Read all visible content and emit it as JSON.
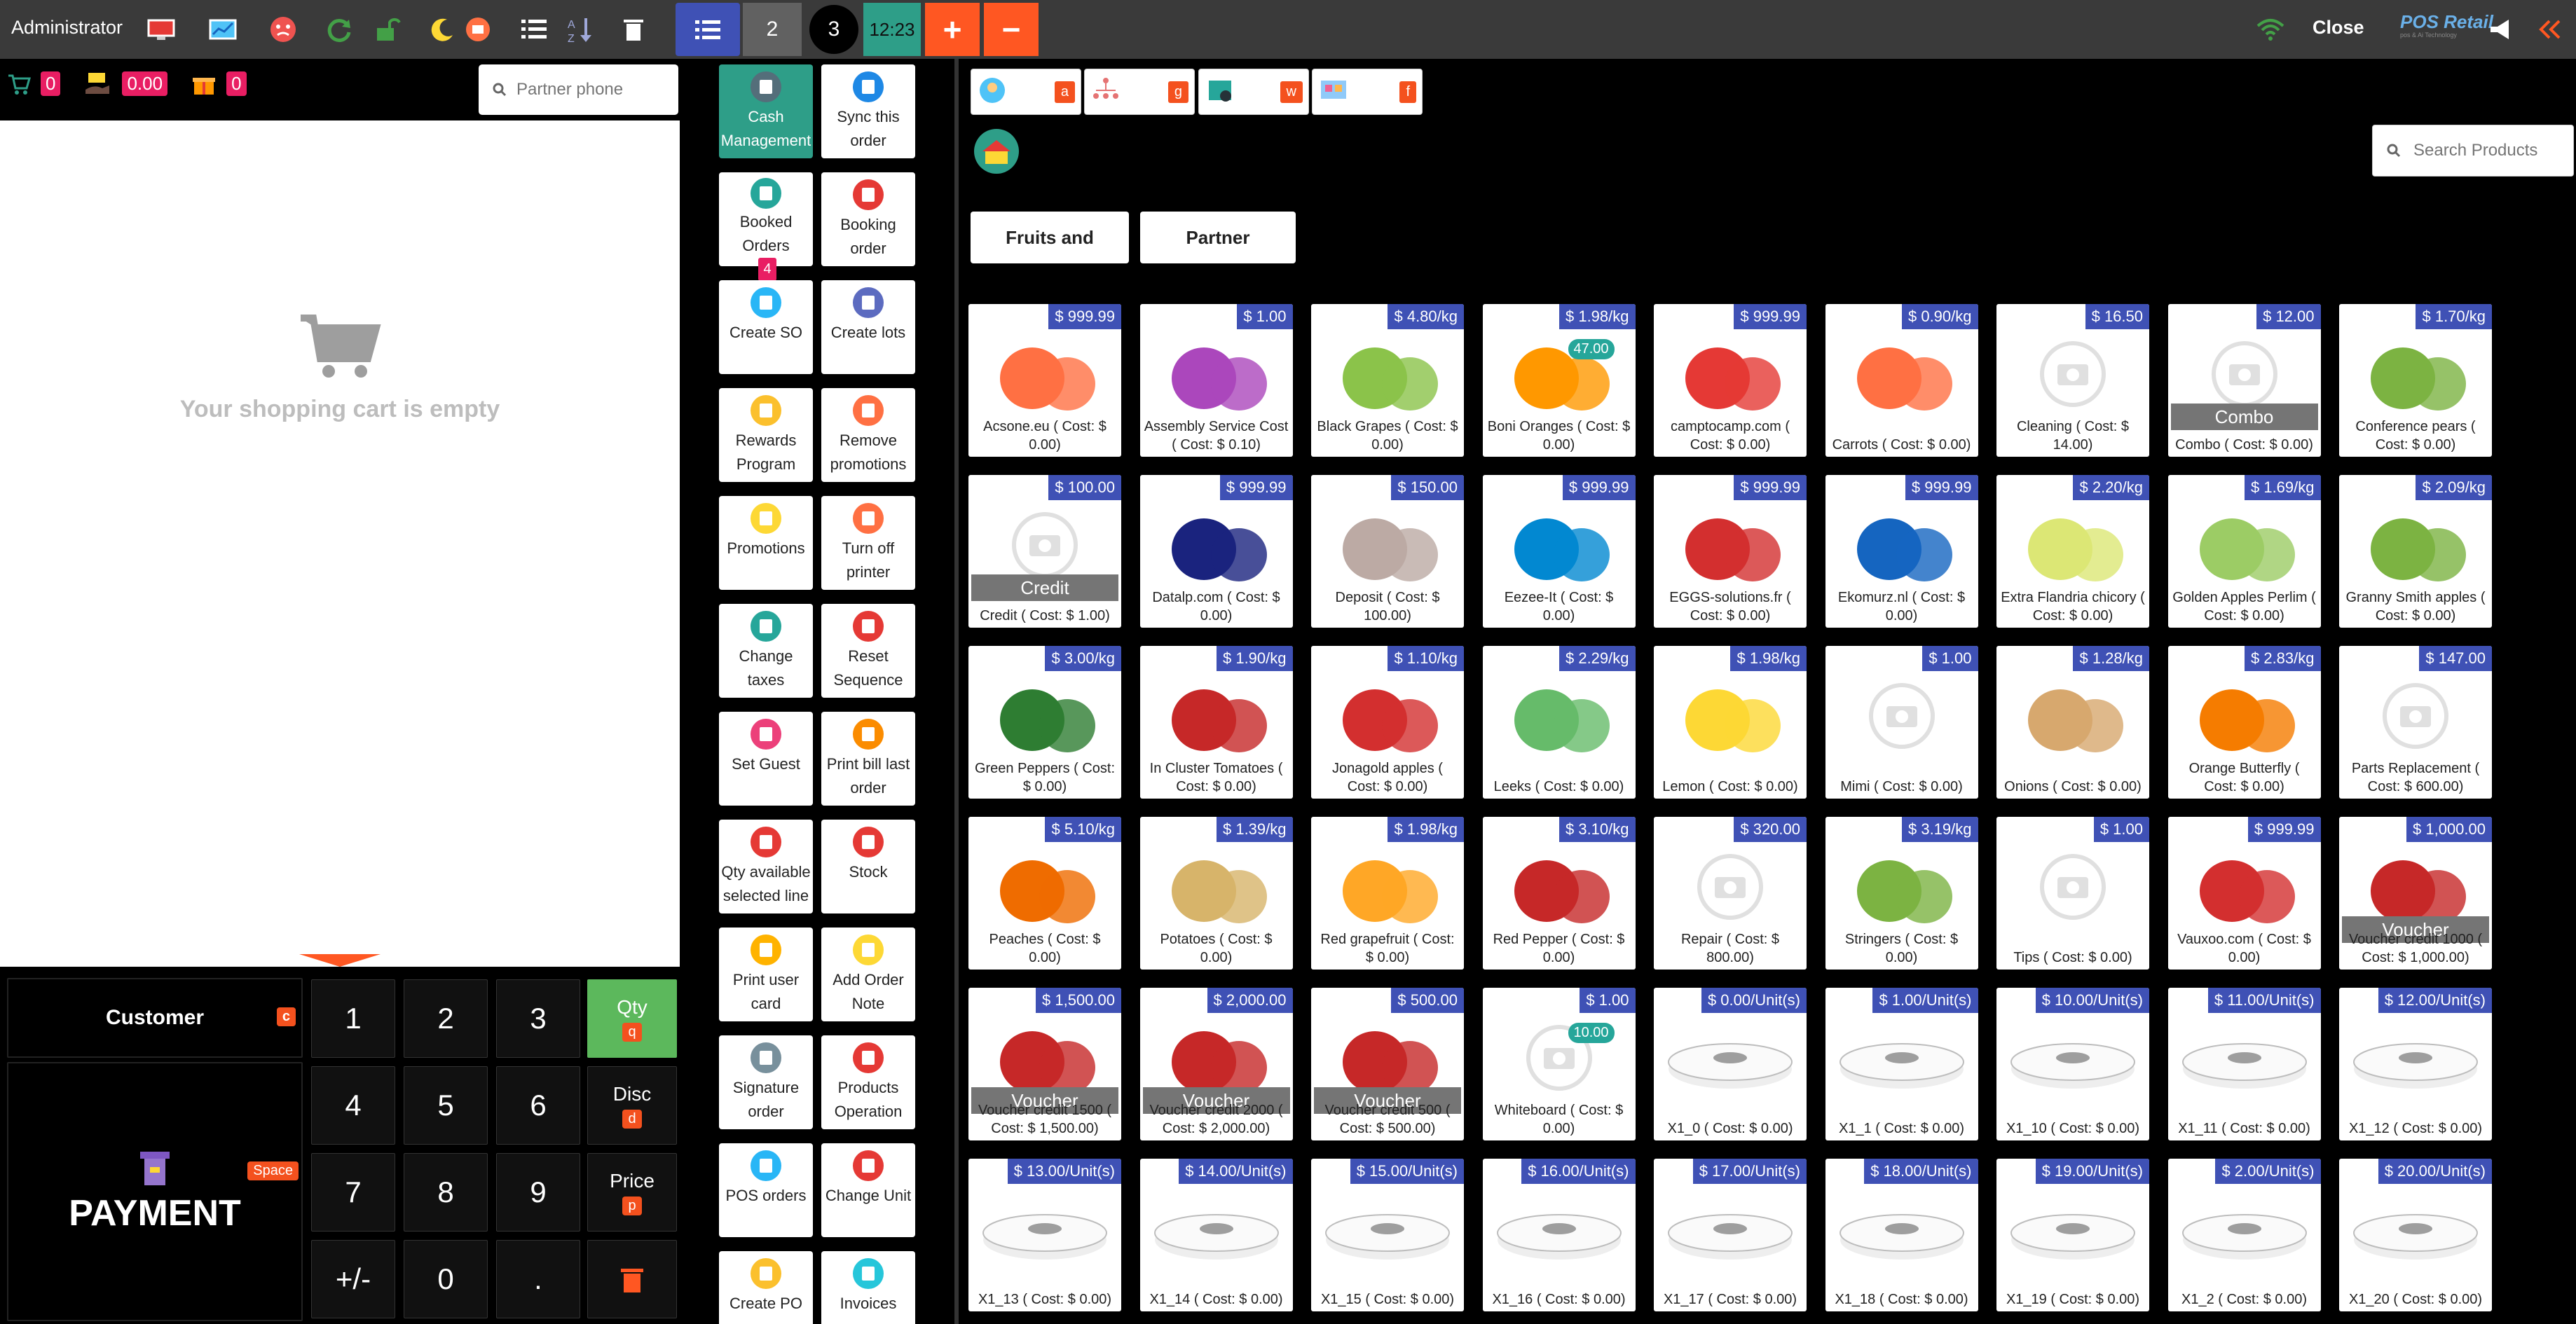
{
  "topbar": {
    "user": "Administrator",
    "orders": [
      {
        "label": ""
      },
      {
        "label": "2"
      },
      {
        "label": "3"
      },
      {
        "label": "12:23"
      }
    ],
    "add": "+",
    "remove": "−",
    "close": "Close",
    "brand": "POS Retail",
    "brand_sub": "pos & Ai Technology"
  },
  "cart": {
    "count": "0",
    "amount": "0.00",
    "gift_count": "0",
    "partner_placeholder": "Partner phone",
    "empty_text": "Your shopping cart is empty"
  },
  "numpad": {
    "customer": "Customer",
    "customer_key": "c",
    "payment": "PAYMENT",
    "payment_key": "Space",
    "keys": [
      "1",
      "2",
      "3",
      "4",
      "5",
      "6",
      "7",
      "8",
      "9",
      "+/-",
      "0",
      "."
    ],
    "qty": "Qty",
    "qty_key": "q",
    "disc": "Disc",
    "disc_key": "d",
    "price": "Price",
    "price_key": "p"
  },
  "actions": [
    {
      "label": "Cash Management"
    },
    {
      "label": "Sync this order"
    },
    {
      "label": "Booked Orders",
      "badge": "4"
    },
    {
      "label": "Booking order"
    },
    {
      "label": "Create SO"
    },
    {
      "label": "Create lots"
    },
    {
      "label": "Rewards Program"
    },
    {
      "label": "Remove promotions"
    },
    {
      "label": "Promotions"
    },
    {
      "label": "Turn off printer"
    },
    {
      "label": "Change taxes"
    },
    {
      "label": "Reset Sequence"
    },
    {
      "label": "Set Guest"
    },
    {
      "label": "Print bill last order"
    },
    {
      "label": "Qty available selected line"
    },
    {
      "label": "Stock"
    },
    {
      "label": "Print user card"
    },
    {
      "label": "Add Order Note"
    },
    {
      "label": "Signature order"
    },
    {
      "label": "Products Operation"
    },
    {
      "label": "POS orders"
    },
    {
      "label": "Change Unit"
    },
    {
      "label": "Create PO"
    },
    {
      "label": "Invoices"
    }
  ],
  "category_tabs": [
    {
      "key": "a",
      "color": "#f4511e"
    },
    {
      "key": "g",
      "color": "#f4511e"
    },
    {
      "key": "w",
      "color": "#f4511e"
    },
    {
      "key": "f",
      "color": "#f4511e"
    }
  ],
  "sub_categories": [
    "Fruits and",
    "Partner"
  ],
  "search_placeholder": "Search Products",
  "products": [
    {
      "price": "$ 999.99",
      "name": "Acsone.eu ( Cost: $ 0.00)"
    },
    {
      "price": "$ 1.00",
      "name": "Assembly Service Cost ( Cost: $ 0.10)"
    },
    {
      "price": "$ 4.80/kg",
      "name": "Black Grapes ( Cost: $ 0.00)"
    },
    {
      "price": "$ 1.98/kg",
      "name": "Boni Oranges ( Cost: $ 0.00)",
      "stock": "47.00"
    },
    {
      "price": "$ 999.99",
      "name": "camptocamp.com ( Cost: $ 0.00)"
    },
    {
      "price": "$ 0.90/kg",
      "name": "Carrots ( Cost: $ 0.00)"
    },
    {
      "price": "$ 16.50",
      "name": "Cleaning ( Cost: $ 14.00)"
    },
    {
      "price": "$ 12.00",
      "name": "Combo ( Cost: $ 0.00)",
      "label": "Combo"
    },
    {
      "price": "$ 1.70/kg",
      "name": "Conference pears ( Cost: $ 0.00)"
    },
    {
      "price": "$ 100.00",
      "name": "Credit ( Cost: $ 1.00)",
      "label": "Credit"
    },
    {
      "price": "$ 999.99",
      "name": "Datalp.com ( Cost: $ 0.00)"
    },
    {
      "price": "$ 150.00",
      "name": "Deposit ( Cost: $ 100.00)"
    },
    {
      "price": "$ 999.99",
      "name": "Eezee-It ( Cost: $ 0.00)"
    },
    {
      "price": "$ 999.99",
      "name": "EGGS-solutions.fr ( Cost: $ 0.00)"
    },
    {
      "price": "$ 999.99",
      "name": "Ekomurz.nl ( Cost: $ 0.00)"
    },
    {
      "price": "$ 2.20/kg",
      "name": "Extra Flandria chicory ( Cost: $ 0.00)"
    },
    {
      "price": "$ 1.69/kg",
      "name": "Golden Apples Perlim ( Cost: $ 0.00)"
    },
    {
      "price": "$ 2.09/kg",
      "name": "Granny Smith apples ( Cost: $ 0.00)"
    },
    {
      "price": "$ 3.00/kg",
      "name": "Green Peppers ( Cost: $ 0.00)"
    },
    {
      "price": "$ 1.90/kg",
      "name": "In Cluster Tomatoes ( Cost: $ 0.00)"
    },
    {
      "price": "$ 1.10/kg",
      "name": "Jonagold apples ( Cost: $ 0.00)"
    },
    {
      "price": "$ 2.29/kg",
      "name": "Leeks ( Cost: $ 0.00)"
    },
    {
      "price": "$ 1.98/kg",
      "name": "Lemon ( Cost: $ 0.00)"
    },
    {
      "price": "$ 1.00",
      "name": "Mimi ( Cost: $ 0.00)"
    },
    {
      "price": "$ 1.28/kg",
      "name": "Onions ( Cost: $ 0.00)"
    },
    {
      "price": "$ 2.83/kg",
      "name": "Orange Butterfly ( Cost: $ 0.00)"
    },
    {
      "price": "$ 147.00",
      "name": "Parts Replacement ( Cost: $ 600.00)"
    },
    {
      "price": "$ 5.10/kg",
      "name": "Peaches ( Cost: $ 0.00)"
    },
    {
      "price": "$ 1.39/kg",
      "name": "Potatoes ( Cost: $ 0.00)"
    },
    {
      "price": "$ 1.98/kg",
      "name": "Red grapefruit ( Cost: $ 0.00)"
    },
    {
      "price": "$ 3.10/kg",
      "name": "Red Pepper ( Cost: $ 0.00)"
    },
    {
      "price": "$ 320.00",
      "name": "Repair ( Cost: $ 800.00)"
    },
    {
      "price": "$ 3.19/kg",
      "name": "Stringers ( Cost: $ 0.00)"
    },
    {
      "price": "$ 1.00",
      "name": "Tips ( Cost: $ 0.00)"
    },
    {
      "price": "$ 999.99",
      "name": "Vauxoo.com ( Cost: $ 0.00)"
    },
    {
      "price": "$ 1,000.00",
      "name": "Voucher credit 1000 ( Cost: $ 1,000.00)",
      "label": "Voucher"
    },
    {
      "price": "$ 1,500.00",
      "name": "Voucher credit 1500 ( Cost: $ 1,500.00)",
      "label": "Voucher"
    },
    {
      "price": "$ 2,000.00",
      "name": "Voucher credit 2000 ( Cost: $ 2,000.00)",
      "label": "Voucher"
    },
    {
      "price": "$ 500.00",
      "name": "Voucher credit 500 ( Cost: $ 500.00)",
      "label": "Voucher"
    },
    {
      "price": "$ 1.00",
      "name": "Whiteboard ( Cost: $ 0.00)",
      "stock": "10.00"
    },
    {
      "price": "$ 0.00/Unit(s)",
      "name": "X1_0 ( Cost: $ 0.00)"
    },
    {
      "price": "$ 1.00/Unit(s)",
      "name": "X1_1 ( Cost: $ 0.00)"
    },
    {
      "price": "$ 10.00/Unit(s)",
      "name": "X1_10 ( Cost: $ 0.00)"
    },
    {
      "price": "$ 11.00/Unit(s)",
      "name": "X1_11 ( Cost: $ 0.00)"
    },
    {
      "price": "$ 12.00/Unit(s)",
      "name": "X1_12 ( Cost: $ 0.00)"
    },
    {
      "price": "$ 13.00/Unit(s)",
      "name": "X1_13 ( Cost: $ 0.00)"
    },
    {
      "price": "$ 14.00/Unit(s)",
      "name": "X1_14 ( Cost: $ 0.00)"
    },
    {
      "price": "$ 15.00/Unit(s)",
      "name": "X1_15 ( Cost: $ 0.00)"
    },
    {
      "price": "$ 16.00/Unit(s)",
      "name": "X1_16 ( Cost: $ 0.00)"
    },
    {
      "price": "$ 17.00/Unit(s)",
      "name": "X1_17 ( Cost: $ 0.00)"
    },
    {
      "price": "$ 18.00/Unit(s)",
      "name": "X1_18 ( Cost: $ 0.00)"
    },
    {
      "price": "$ 19.00/Unit(s)",
      "name": "X1_19 ( Cost: $ 0.00)"
    },
    {
      "price": "$ 2.00/Unit(s)",
      "name": "X1_2 ( Cost: $ 0.00)"
    },
    {
      "price": "$ 20.00/Unit(s)",
      "name": "X1_20 ( Cost: $ 0.00)"
    }
  ],
  "colors": {
    "topbar": "#3a3a3a",
    "accent_orange": "#ff5722",
    "accent_green": "#2e9e88",
    "price_tag": "#3f51b5",
    "badge_pink": "#e91e63"
  }
}
